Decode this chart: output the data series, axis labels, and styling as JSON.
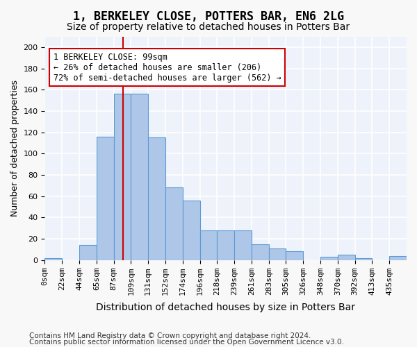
{
  "title": "1, BERKELEY CLOSE, POTTERS BAR, EN6 2LG",
  "subtitle": "Size of property relative to detached houses in Potters Bar",
  "xlabel": "Distribution of detached houses by size in Potters Bar",
  "ylabel": "Number of detached properties",
  "bar_labels": [
    "0sqm",
    "22sqm",
    "44sqm",
    "65sqm",
    "87sqm",
    "109sqm",
    "131sqm",
    "152sqm",
    "174sqm",
    "196sqm",
    "218sqm",
    "239sqm",
    "261sqm",
    "283sqm",
    "305sqm",
    "326sqm",
    "348sqm",
    "370sqm",
    "392sqm",
    "413sqm",
    "435sqm"
  ],
  "bar_heights": [
    2,
    0,
    14,
    116,
    156,
    156,
    115,
    68,
    56,
    28,
    28,
    28,
    15,
    11,
    8,
    0,
    3,
    5,
    2,
    0,
    4
  ],
  "bar_color": "#aec6e8",
  "bar_edge_color": "#5b9bd5",
  "background_color": "#eef3fb",
  "grid_color": "#ffffff",
  "annotation_text": "1 BERKELEY CLOSE: 99sqm\n← 26% of detached houses are smaller (206)\n72% of semi-detached houses are larger (562) →",
  "annotation_box_color": "#ffffff",
  "annotation_box_edge": "#cc0000",
  "vline_color": "#cc0000",
  "ylim": [
    0,
    210
  ],
  "yticks": [
    0,
    20,
    40,
    60,
    80,
    100,
    120,
    140,
    160,
    180,
    200
  ],
  "footer1": "Contains HM Land Registry data © Crown copyright and database right 2024.",
  "footer2": "Contains public sector information licensed under the Open Government Licence v3.0.",
  "title_fontsize": 12,
  "subtitle_fontsize": 10,
  "xlabel_fontsize": 10,
  "ylabel_fontsize": 9,
  "tick_fontsize": 8,
  "annotation_fontsize": 8.5,
  "footer_fontsize": 7.5
}
